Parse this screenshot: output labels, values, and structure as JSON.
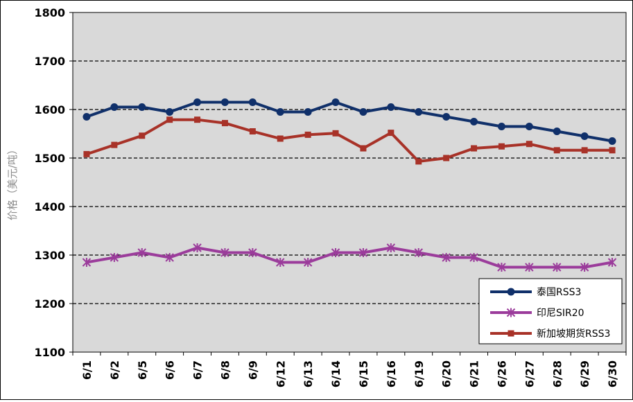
{
  "chart_data": {
    "type": "line",
    "ylabel": "价格（美元/吨）",
    "ylim": [
      1100,
      1800
    ],
    "yticks": [
      1100,
      1200,
      1300,
      1400,
      1500,
      1600,
      1700,
      1800
    ],
    "grid": "horizontal dashed",
    "legend_position": "bottom-right",
    "categories": [
      "6/1",
      "6/2",
      "6/5",
      "6/6",
      "6/7",
      "6/8",
      "6/9",
      "6/12",
      "6/13",
      "6/14",
      "6/15",
      "6/16",
      "6/19",
      "6/20",
      "6/21",
      "6/26",
      "6/27",
      "6/28",
      "6/29",
      "6/30"
    ],
    "series": [
      {
        "name": "泰国RSS3",
        "color": "#10306a",
        "marker": "circle",
        "values": [
          1585,
          1605,
          1605,
          1595,
          1615,
          1615,
          1615,
          1595,
          1595,
          1615,
          1595,
          1605,
          1595,
          1585,
          1575,
          1565,
          1565,
          1555,
          1545,
          1535
        ]
      },
      {
        "name": "印尼SIR20",
        "color": "#9b3c9b",
        "marker": "asterisk",
        "values": [
          1285,
          1295,
          1305,
          1295,
          1315,
          1305,
          1305,
          1285,
          1285,
          1305,
          1305,
          1315,
          1305,
          1295,
          1295,
          1275,
          1275,
          1275,
          1275,
          1285
        ]
      },
      {
        "name": "新加坡期货RSS3",
        "color": "#a83228",
        "marker": "square",
        "values": [
          1508,
          1527,
          1546,
          1579,
          1579,
          1572,
          1555,
          1540,
          1548,
          1551,
          1520,
          1552,
          1493,
          1500,
          1520,
          1524,
          1529,
          1516,
          1516,
          1516
        ]
      }
    ]
  }
}
